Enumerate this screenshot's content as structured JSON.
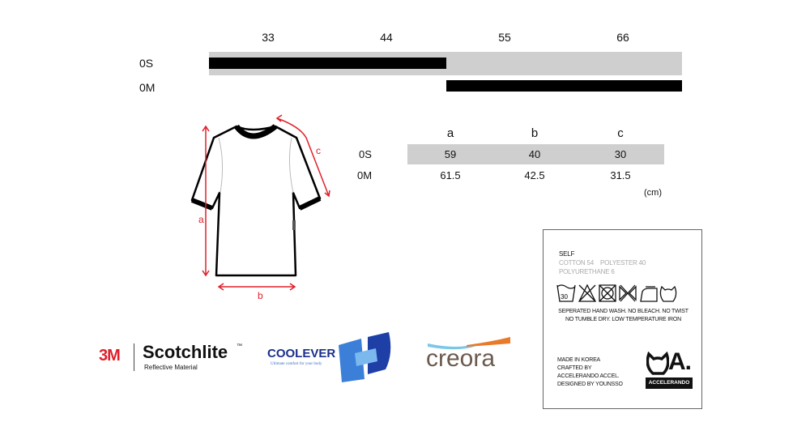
{
  "size_chart": {
    "columns": [
      "33",
      "44",
      "55",
      "66"
    ],
    "rows": [
      {
        "label": "0S",
        "range_start": "33",
        "range_end": "44"
      },
      {
        "label": "0M",
        "range_start": "55",
        "range_end": "66"
      }
    ]
  },
  "measurements": {
    "headers": [
      "a",
      "b",
      "c"
    ],
    "rows": [
      {
        "label": "0S",
        "values": [
          "59",
          "40",
          "30"
        ]
      },
      {
        "label": "0M",
        "values": [
          "61.5",
          "42.5",
          "31.5"
        ]
      }
    ],
    "unit": "(cm)"
  },
  "diagram": {
    "labels": {
      "a": "a",
      "b": "b",
      "c": "c"
    },
    "arrow_color": "#e0202a"
  },
  "logos": {
    "scotchlite": {
      "brand": "3M",
      "name": "Scotchlite",
      "tm": "™",
      "sub": "Reflective Material"
    },
    "coolever": {
      "name": "COOLEVER",
      "tm": "™",
      "tagline": "Ultimate comfort for your body"
    },
    "creora": {
      "name": "creora"
    }
  },
  "care_label": {
    "title": "SELF",
    "composition_1": "COTTON 54    POLYESTER 40",
    "composition_2": "POLYURETHANE 6",
    "wash_temp": "30",
    "instructions_1": "SEPERATED HAND WASH. NO BLEACH. NO TWIST",
    "instructions_2": "NO TUMBLE DRY. LOW TEMPERATURE IRON",
    "made_1": "MADE IN KOREA",
    "made_2": "CRAFTED BY",
    "made_3": "ACCELERANDO ACCEL.",
    "made_4": "DESIGNED BY YOUNSSO",
    "brand_mark": "A.",
    "brand_name": "ACCELERANDO"
  }
}
